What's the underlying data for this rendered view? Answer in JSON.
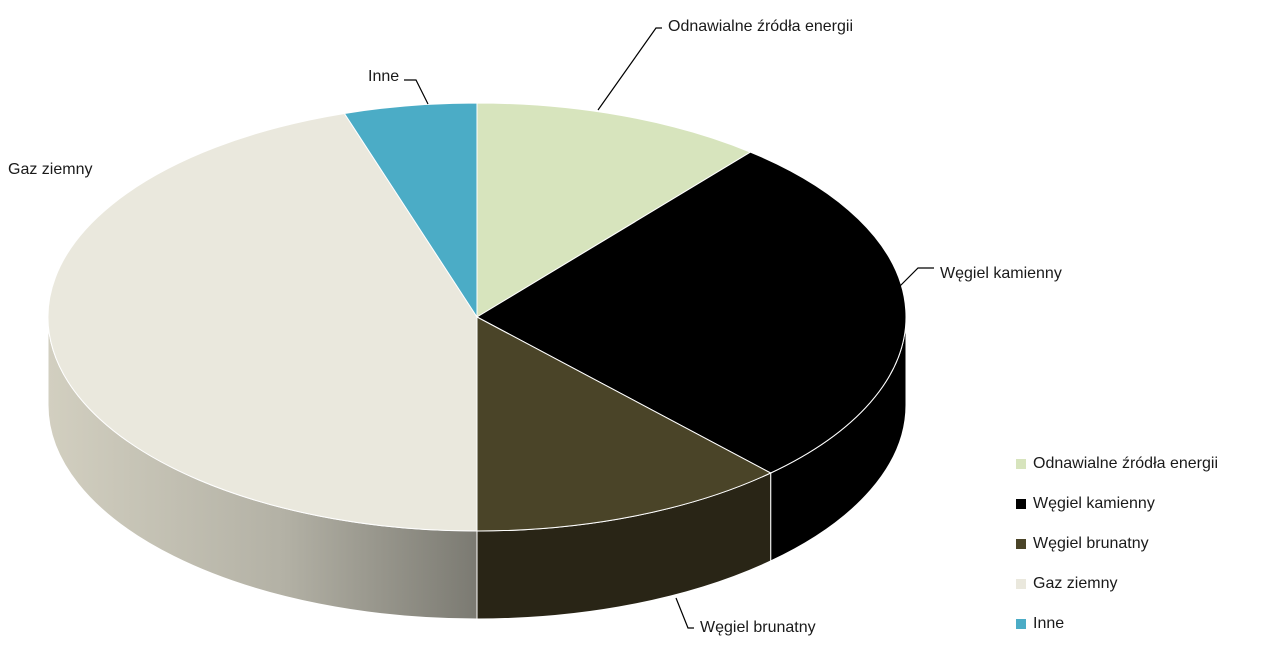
{
  "chart_data": {
    "type": "pie",
    "style": "3d",
    "title": "",
    "slices": [
      {
        "label": "Odnawialne źródła energii",
        "value": 11,
        "color": "#d7e4bd"
      },
      {
        "label": "Węgiel kamienny",
        "value": 27,
        "color": "#000000"
      },
      {
        "label": "Węgiel brunatny",
        "value": 12,
        "color": "#4a4428"
      },
      {
        "label": "Gaz ziemny",
        "value": 45,
        "color": "#eae8dd"
      },
      {
        "label": "Inne",
        "value": 5,
        "color": "#4bacc6"
      }
    ],
    "legend": {
      "position": "bottom-right"
    }
  }
}
